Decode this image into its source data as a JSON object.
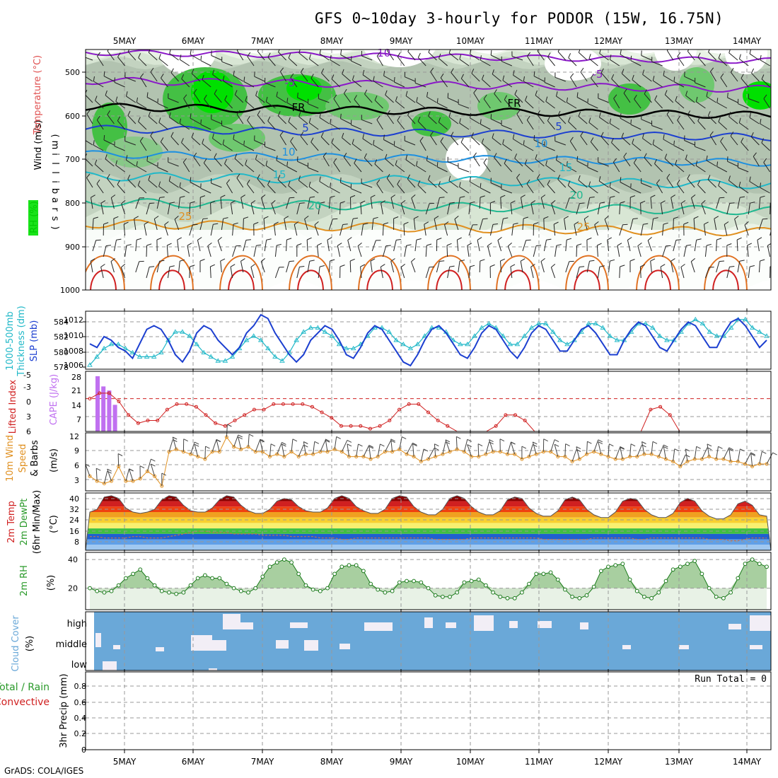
{
  "title": "GFS 0~10day 3-hourly for PODOR (15W, 16.75N)",
  "credit": "GrADS: COLA/IGES",
  "dates": [
    "5MAY",
    "6MAY",
    "7MAY",
    "8MAY",
    "9MAY",
    "10MAY",
    "11MAY",
    "12MAY",
    "13MAY",
    "14MAY"
  ],
  "colors": {
    "temp_blue": "#1c3fd0",
    "cyan": "#20b8c8",
    "red": "#d02020",
    "orange": "#e09020",
    "green": "#2a9a2a",
    "cloud": "#6aa8d8",
    "violet": "#c070f0",
    "purple": "#8a18c8"
  },
  "panels": {
    "profile": {
      "ylabel": "(millibars)",
      "ylabel_chars": [
        "(",
        "m",
        "i",
        "l",
        "l",
        "i",
        "b",
        "a",
        "r",
        "s",
        ")"
      ],
      "legend_rh": "RH (%)",
      "legend_temp": "Temperature (°C)",
      "legend_wind": "Wind (m/s)",
      "levels": [
        "500",
        "600",
        "700",
        "800",
        "900",
        "1000"
      ],
      "iso_labels": [
        {
          "t": "-10"
        },
        {
          "t": "-5"
        },
        {
          "t": "-5"
        },
        {
          "t": "FR"
        },
        {
          "t": "FR"
        },
        {
          "t": "5"
        },
        {
          "t": "5"
        },
        {
          "t": "10"
        },
        {
          "t": "10"
        },
        {
          "t": "15"
        },
        {
          "t": "15"
        },
        {
          "t": "20"
        },
        {
          "t": "20"
        },
        {
          "t": "25"
        },
        {
          "t": "25"
        }
      ]
    },
    "slp": {
      "left_label_1": "1000-500mb",
      "left_label_2": "Thickness (dm)",
      "right_label": "SLP (mb)",
      "thick_ticks": [
        "584",
        "582",
        "580",
        "578"
      ],
      "slp_ticks": [
        "1012",
        "1010",
        "1008",
        "1006"
      ]
    },
    "li": {
      "label_li": "Lifted Index",
      "label_cape": "CAPE (J/kg)",
      "li_ticks": [
        "-5",
        "-3",
        "0",
        "3",
        "6"
      ],
      "cape_ticks": [
        "28",
        "21",
        "14",
        "7"
      ]
    },
    "wind10": {
      "label_1": "10m Wind",
      "label_2": "Speed",
      "label_3": "& Barbs",
      "unit": "(m/s)",
      "ticks": [
        "12",
        "9",
        "6",
        "3"
      ]
    },
    "t2m": {
      "label_1": "2m Temp",
      "label_2": "2m DewPt",
      "label_3": "(6hr Min/Max)",
      "unit": "(°C)",
      "ticks": [
        "40",
        "32",
        "24",
        "16",
        "8"
      ]
    },
    "rh2m": {
      "label": "2m RH",
      "unit": "(%)",
      "ticks": [
        "40",
        "20"
      ]
    },
    "cloud": {
      "label": "Cloud Cover",
      "unit": "(%)",
      "levels": [
        "high",
        "middle",
        "low"
      ]
    },
    "precip": {
      "label_1": "Total / Rain",
      "label_2": "Convective",
      "label_3": "3hr Precip (mm)",
      "run_total": "Run Total = 0",
      "ticks": [
        "0.8",
        "0.6",
        "0.4",
        "0.2",
        "0"
      ]
    }
  },
  "chart_data": [
    {
      "type": "line",
      "name": "slp",
      "title": "SLP (mb)",
      "ylim": [
        1005,
        1013
      ],
      "series": [
        {
          "name": "SLP (mb)",
          "values": [
            1008.5,
            1008,
            1009.5,
            1009,
            1008,
            1007.5,
            1006.5,
            1008.5,
            1010.5,
            1011,
            1010.5,
            1009,
            1007,
            1006,
            1007.5,
            1010,
            1011,
            1010.5,
            1009,
            1008,
            1007,
            1008,
            1010,
            1011,
            1012.5,
            1012,
            1010,
            1008.5,
            1007,
            1006,
            1007,
            1009,
            1010,
            1011,
            1010.5,
            1009,
            1007,
            1006.5,
            1008,
            1010,
            1011,
            1010.5,
            1009,
            1007.5,
            1006,
            1005.5,
            1007,
            1009,
            1010.5,
            1011,
            1010,
            1008.5,
            1007,
            1006.5,
            1008,
            1010,
            1011,
            1010.5,
            1009,
            1007.5,
            1006.5,
            1008,
            1010,
            1011,
            1010.5,
            1009,
            1007.5,
            1007.5,
            1009,
            1010.5,
            1011,
            1010,
            1008.5,
            1007,
            1007,
            1009,
            1010.5,
            1011.5,
            1011,
            1009.5,
            1008,
            1007.5,
            1009,
            1010.5,
            1011.5,
            1011,
            1009.5,
            1008,
            1008,
            1010,
            1011.5,
            1012,
            1011,
            1009.5,
            1008,
            1009
          ]
        }
      ]
    },
    {
      "type": "line",
      "name": "thickness",
      "title": "1000-500mb Thickness (dm)",
      "ylim": [
        578,
        585
      ],
      "series": [
        {
          "name": "Thickness",
          "values": [
            578.5,
            579.5,
            580.5,
            581,
            581,
            580.5,
            580,
            579.5,
            579.5,
            579.5,
            580,
            581.5,
            582.5,
            582.5,
            582,
            581,
            580,
            579.5,
            579,
            579,
            579.5,
            580.5,
            581.5,
            582,
            581.5,
            580.5,
            579.5,
            579,
            580,
            581.5,
            582.5,
            583,
            583,
            582.5,
            582,
            581,
            580.5,
            580.5,
            581,
            582,
            583,
            583,
            582.5,
            581.5,
            581,
            580.5,
            581,
            582,
            583,
            583,
            582.5,
            581.5,
            581,
            581,
            582,
            583,
            583.5,
            583,
            582,
            581,
            581,
            582,
            583,
            583.5,
            583.5,
            582.5,
            581.5,
            581,
            581.5,
            582.5,
            583.5,
            583.5,
            583,
            582,
            581.5,
            581.5,
            582.5,
            583.5,
            583.5,
            583,
            582,
            581.5,
            581.5,
            582.5,
            583.5,
            584,
            583.5,
            582.5,
            582,
            582,
            583,
            584,
            584,
            583,
            582.5,
            582
          ]
        }
      ]
    },
    {
      "type": "line",
      "name": "lifted_index",
      "title": "Lifted Index",
      "ylim": [
        6,
        -5
      ],
      "series": [
        {
          "name": "Lifted Index",
          "values": [
            0,
            -1,
            -1,
            0.5,
            3,
            4.5,
            4,
            4,
            2,
            1,
            1,
            1.5,
            3,
            4.5,
            5,
            4,
            3,
            2,
            2,
            1,
            1,
            1,
            1,
            1.5,
            2.5,
            3.5,
            5,
            5,
            5,
            5.5,
            5,
            4,
            2,
            1,
            1,
            2.5,
            4,
            5,
            6,
            6,
            6,
            6,
            5,
            3,
            3,
            4,
            6,
            6,
            6,
            6,
            6,
            6,
            6,
            6,
            6,
            6,
            6,
            6,
            2,
            1.5,
            3,
            6,
            6,
            6,
            6,
            6,
            6,
            6,
            6,
            6,
            6
          ]
        }
      ]
    },
    {
      "type": "bar",
      "name": "cape",
      "title": "CAPE (J/kg)",
      "ylim": [
        0,
        28
      ],
      "categories": [
        "5MAY 06",
        "5MAY 09",
        "5MAY 12",
        "5MAY 15"
      ],
      "values": [
        27,
        22,
        20,
        13
      ]
    },
    {
      "type": "line",
      "name": "wind10_speed",
      "title": "10m Wind Speed (m/s)",
      "ylim": [
        1,
        12
      ],
      "series": [
        {
          "name": "Speed",
          "values": [
            4,
            3,
            2.5,
            3,
            6,
            3,
            3,
            3.5,
            5,
            4,
            2,
            9,
            9.5,
            9,
            8.5,
            8,
            7.5,
            9,
            9,
            12,
            10,
            9.5,
            10,
            9,
            9,
            8,
            8.5,
            8,
            9,
            8,
            8.5,
            8.5,
            9,
            9,
            9.5,
            9,
            8,
            8,
            8,
            7.5,
            8,
            9,
            9,
            9.5,
            8.5,
            8,
            7,
            7.5,
            8,
            8.5,
            9,
            9.5,
            9,
            8,
            8,
            8.5,
            9,
            9,
            8.5,
            8.5,
            7.5,
            8,
            8.5,
            9,
            9,
            8,
            8,
            7,
            7.5,
            8.5,
            9,
            8.5,
            8,
            7.5,
            7.5,
            8,
            8,
            8.5,
            8.5,
            8,
            7.5,
            7,
            6,
            7,
            7.5,
            7.5,
            8,
            7.5,
            7.5,
            7,
            7,
            6.5,
            6,
            6.5,
            6.5
          ]
        }
      ]
    },
    {
      "type": "area",
      "name": "temp2m",
      "title": "2m Temp (°C)",
      "ylim": [
        0,
        42
      ],
      "series": [
        {
          "name": "2m Temp",
          "values": [
            28,
            30,
            39,
            40,
            38,
            31,
            28,
            27,
            28,
            30,
            37,
            40,
            39,
            33,
            29,
            28,
            28,
            31,
            37,
            40,
            39,
            33,
            29,
            27,
            27,
            30,
            36,
            38,
            37,
            32,
            29,
            28,
            28,
            31,
            38,
            40,
            38,
            32,
            29,
            27,
            27,
            30,
            38,
            40,
            39,
            32,
            28,
            26,
            26,
            30,
            38,
            40,
            38,
            32,
            28,
            26,
            26,
            29,
            37,
            39,
            38,
            31,
            27,
            25,
            25,
            29,
            37,
            39,
            37,
            30,
            26,
            24,
            24,
            28,
            36,
            38,
            37,
            30,
            26,
            24,
            24,
            27,
            35,
            38,
            36,
            29,
            25,
            23,
            23,
            26,
            34,
            36,
            33,
            26,
            25
          ]
        },
        {
          "name": "2m DewPt",
          "values": [
            10,
            10,
            9,
            9,
            9,
            9,
            10,
            10,
            9,
            9,
            9,
            10,
            11,
            12,
            13,
            14,
            14,
            13,
            13,
            13,
            12,
            12,
            12,
            12,
            11,
            11,
            11,
            11,
            10,
            10,
            10,
            10,
            9,
            9,
            9,
            8,
            8,
            9,
            9,
            9,
            9,
            9,
            9,
            9,
            9,
            9,
            9,
            9,
            8,
            8,
            8,
            8,
            8,
            9,
            9,
            9,
            9,
            9,
            9,
            9,
            9,
            9,
            9,
            8,
            8,
            8,
            8,
            8,
            8,
            8,
            9,
            9,
            9,
            9,
            9,
            9,
            8,
            8,
            9,
            9,
            9,
            9,
            9,
            9,
            9,
            9,
            8,
            8,
            8,
            7,
            7,
            8,
            9,
            9,
            9
          ]
        }
      ]
    },
    {
      "type": "area",
      "name": "rh2m",
      "title": "2m RH (%)",
      "ylim": [
        5,
        45
      ],
      "series": [
        {
          "name": "2m RH",
          "values": [
            20,
            18,
            17,
            18,
            22,
            27,
            30,
            33,
            27,
            22,
            18,
            17,
            16,
            17,
            22,
            27,
            29,
            27,
            27,
            23,
            20,
            18,
            17,
            20,
            28,
            35,
            38,
            40,
            38,
            30,
            22,
            19,
            18,
            20,
            30,
            35,
            36,
            36,
            32,
            23,
            19,
            17,
            18,
            24,
            25,
            25,
            24,
            20,
            15,
            14,
            14,
            17,
            24,
            25,
            26,
            22,
            17,
            14,
            13,
            13,
            17,
            23,
            30,
            30,
            31,
            26,
            19,
            14,
            13,
            15,
            21,
            32,
            35,
            36,
            37,
            26,
            18,
            14,
            13,
            17,
            25,
            33,
            35,
            37,
            39,
            30,
            20,
            14,
            13,
            17,
            27,
            37,
            40,
            37,
            35
          ]
        }
      ]
    },
    {
      "type": "heatmap",
      "name": "cloud_cover",
      "title": "Cloud Cover (%)",
      "rows": [
        "high",
        "middle",
        "low"
      ]
    },
    {
      "type": "bar",
      "name": "precip3hr",
      "title": "3hr Precip (mm)",
      "ylim": [
        0,
        0.9
      ],
      "values": []
    }
  ]
}
